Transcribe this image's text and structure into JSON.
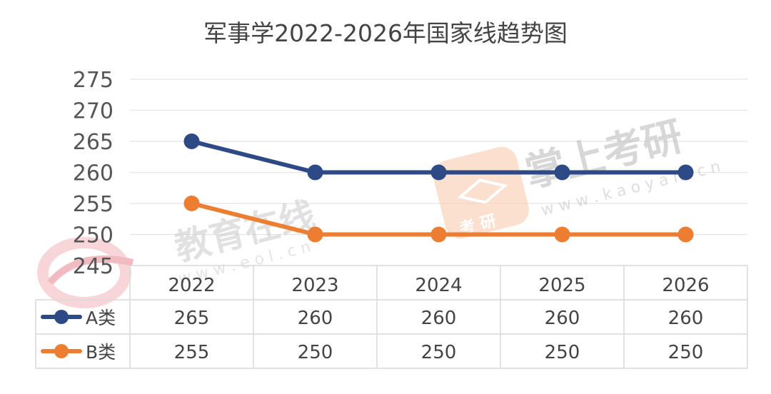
{
  "chart_data": {
    "type": "line",
    "title": "军事学2022-2026年国家线趋势图",
    "categories": [
      "2022",
      "2023",
      "2024",
      "2025",
      "2026"
    ],
    "series": [
      {
        "name": "A类",
        "values": [
          265,
          260,
          260,
          260,
          260
        ],
        "color": "#2E4A86"
      },
      {
        "name": "B类",
        "values": [
          255,
          250,
          250,
          250,
          250
        ],
        "color": "#ED7D31"
      }
    ],
    "ylim": [
      245,
      275
    ],
    "yticks": [
      "245",
      "250",
      "255",
      "260",
      "265",
      "270",
      "275"
    ],
    "grid": true,
    "data_table": true,
    "legend": "in data table"
  },
  "watermarks": {
    "left_brand": "教育在线",
    "left_url": "w w w . e o l . c n",
    "right_brand": "掌上考研",
    "right_url": "w w w . k a o y a n . c n",
    "badge_text": "考 研"
  }
}
